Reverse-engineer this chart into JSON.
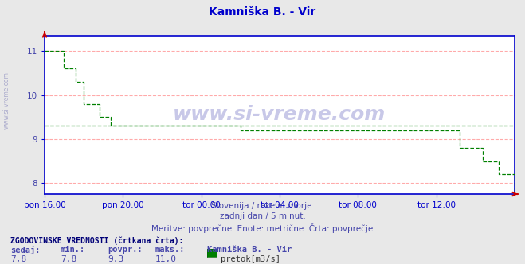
{
  "title": "Kamniška B. - Vir",
  "title_color": "#0000cc",
  "bg_color": "#e8e8e8",
  "plot_bg_color": "#ffffff",
  "line_color": "#008000",
  "avg_line_color": "#008000",
  "avg_value": 9.3,
  "ylim": [
    7.75,
    11.35
  ],
  "yticks": [
    8,
    9,
    10,
    11
  ],
  "tick_label_color": "#4444aa",
  "grid_h_color": "#ffaaaa",
  "grid_v_color": "#dddddd",
  "axis_color": "#0000cc",
  "arrow_color": "#cc0000",
  "subtitle1": "Slovenija / reke in morje.",
  "subtitle2": "zadnji dan / 5 minut.",
  "subtitle3": "Meritve: povprečne  Enote: metrične  Črta: povprečje",
  "subtitle_color": "#4444aa",
  "watermark": "www.si-vreme.com",
  "watermark_color": "#c8c8e8",
  "left_label": "www.si-vreme.com",
  "left_label_color": "#aaaacc",
  "footer_label1": "ZGODOVINSKE VREDNOSTI (črtkana črta):",
  "footer_headers": [
    "sedaj:",
    "min.:",
    "povpr.:",
    "maks.:",
    "Kamniška B. - Vir"
  ],
  "footer_values": [
    "7,8",
    "7,8",
    "9,3",
    "11,0"
  ],
  "footer_legend": "pretok[m3/s]",
  "footer_legend_color": "#008000",
  "x_labels": [
    "pon 16:00",
    "pon 20:00",
    "tor 00:00",
    "tor 04:00",
    "tor 08:00",
    "tor 12:00"
  ],
  "flow_data": [
    11.0,
    11.0,
    11.0,
    11.0,
    11.0,
    11.0,
    11.0,
    11.0,
    11.0,
    11.0,
    11.0,
    11.0,
    10.6,
    10.6,
    10.6,
    10.6,
    10.6,
    10.6,
    10.6,
    10.6,
    10.3,
    10.3,
    10.3,
    10.3,
    10.3,
    9.8,
    9.8,
    9.8,
    9.8,
    9.8,
    9.8,
    9.8,
    9.8,
    9.8,
    9.8,
    9.5,
    9.5,
    9.5,
    9.5,
    9.5,
    9.5,
    9.5,
    9.3,
    9.3,
    9.3,
    9.3,
    9.3,
    9.3,
    9.3,
    9.3,
    9.3,
    9.3,
    9.3,
    9.3,
    9.3,
    9.3,
    9.3,
    9.3,
    9.3,
    9.3,
    9.3,
    9.3,
    9.3,
    9.3,
    9.3,
    9.3,
    9.3,
    9.3,
    9.3,
    9.3,
    9.3,
    9.3,
    9.3,
    9.3,
    9.3,
    9.3,
    9.3,
    9.3,
    9.3,
    9.3,
    9.3,
    9.3,
    9.3,
    9.3,
    9.3,
    9.3,
    9.3,
    9.3,
    9.3,
    9.3,
    9.3,
    9.3,
    9.3,
    9.3,
    9.3,
    9.3,
    9.3,
    9.3,
    9.3,
    9.3,
    9.3,
    9.3,
    9.3,
    9.3,
    9.3,
    9.3,
    9.3,
    9.3,
    9.3,
    9.3,
    9.3,
    9.3,
    9.3,
    9.3,
    9.3,
    9.3,
    9.3,
    9.3,
    9.3,
    9.3,
    9.3,
    9.3,
    9.3,
    9.3,
    9.3,
    9.2,
    9.2,
    9.2,
    9.2,
    9.2,
    9.2,
    9.2,
    9.2,
    9.2,
    9.2,
    9.2,
    9.2,
    9.2,
    9.2,
    9.2,
    9.2,
    9.2,
    9.2,
    9.2,
    9.2,
    9.2,
    9.2,
    9.2,
    9.2,
    9.2,
    9.2,
    9.2,
    9.2,
    9.2,
    9.2,
    9.2,
    9.2,
    9.2,
    9.2,
    9.2,
    9.2,
    9.2,
    9.2,
    9.2,
    9.2,
    9.2,
    9.2,
    9.2,
    9.2,
    9.2,
    9.2,
    9.2,
    9.2,
    9.2,
    9.2,
    9.2,
    9.2,
    9.2,
    9.2,
    9.2,
    9.2,
    9.2,
    9.2,
    9.2,
    9.2,
    9.2,
    9.2,
    9.2,
    9.2,
    9.2,
    9.2,
    9.2,
    9.2,
    9.2,
    9.2,
    9.2,
    9.2,
    9.2,
    9.2,
    9.2,
    9.2,
    9.2,
    9.2,
    9.2,
    9.2,
    9.2,
    9.2,
    9.2,
    9.2,
    9.2,
    9.2,
    9.2,
    9.2,
    9.2,
    9.2,
    9.2,
    9.2,
    9.2,
    9.2,
    9.2,
    9.2,
    9.2,
    9.2,
    9.2,
    9.2,
    9.2,
    9.2,
    9.2,
    9.2,
    9.2,
    9.2,
    9.2,
    9.2,
    9.2,
    9.2,
    9.2,
    9.2,
    9.2,
    9.2,
    9.2,
    9.2,
    9.2,
    9.2,
    9.2,
    9.2,
    9.2,
    9.2,
    9.2,
    9.2,
    9.2,
    9.2,
    9.2,
    9.2,
    9.2,
    9.2,
    9.2,
    9.2,
    9.2,
    9.2,
    9.2,
    9.2,
    9.2,
    9.2,
    9.2,
    9.2,
    8.8,
    8.8,
    8.8,
    8.8,
    8.8,
    8.8,
    8.8,
    8.8,
    8.8,
    8.8,
    8.8,
    8.8,
    8.8,
    8.8,
    8.8,
    8.5,
    8.5,
    8.5,
    8.5,
    8.5,
    8.5,
    8.5,
    8.5,
    8.5,
    8.5,
    8.2,
    8.2,
    8.2,
    8.2,
    8.2,
    8.2,
    8.2,
    8.2,
    8.2,
    8.2,
    7.8
  ]
}
